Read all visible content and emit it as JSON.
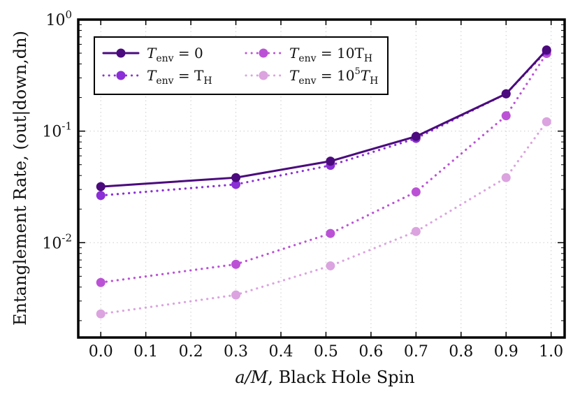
{
  "chart_data": {
    "type": "line",
    "title": "",
    "xlabel_math": "a/M",
    "xlabel_text": ", Black Hole Spin",
    "ylabel": "Entanglement Rate, (out|down,dn)",
    "xlim": [
      -0.05,
      1.03
    ],
    "ylim_log10": [
      -2.85,
      0.0
    ],
    "yscale": "log",
    "grid": true,
    "legend_position": "top-left",
    "x_ticks": [
      0.0,
      0.1,
      0.2,
      0.3,
      0.4,
      0.5,
      0.6,
      0.7,
      0.8,
      0.9,
      1.0
    ],
    "x_tick_labels": [
      "0.0",
      "0.1",
      "0.2",
      "0.3",
      "0.4",
      "0.5",
      "0.6",
      "0.7",
      "0.8",
      "0.9",
      "1.0"
    ],
    "y_ticks": [
      {
        "base": "10",
        "exp": "0",
        "log": 0
      },
      {
        "base": "10",
        "exp": "-1",
        "log": -1
      },
      {
        "base": "10",
        "exp": "-2",
        "log": -2
      }
    ],
    "x": [
      0.0,
      0.3,
      0.51,
      0.7,
      0.9,
      0.99
    ],
    "series": [
      {
        "name": "T_env = 0",
        "label_main": "T",
        "label_sub": "env",
        "label_rest": " = 0",
        "color": "#4b0a7d",
        "style": "solid",
        "values": [
          0.0318,
          0.0383,
          0.0538,
          0.0897,
          0.2161,
          0.5337
        ]
      },
      {
        "name": "T_env = T_H",
        "label_main": "T",
        "label_sub": "env",
        "label_rest": " = T",
        "label_rest_sub": "H",
        "color": "#8b2fd6",
        "style": "dotted",
        "values": [
          0.0265,
          0.0333,
          0.0493,
          0.0861,
          0.2161,
          0.5216
        ]
      },
      {
        "name": "T_env = 10T_H",
        "label_main": "T",
        "label_sub": "env",
        "label_rest": " = 10T",
        "label_rest_sub": "H",
        "color": "#bb52d6",
        "style": "dotted",
        "values": [
          0.0044,
          0.0064,
          0.0121,
          0.0285,
          0.1373,
          0.4965
        ]
      },
      {
        "name": "T_env = 10^5 T_H",
        "label_main": "T",
        "label_sub": "env",
        "label_rest": " = 10",
        "label_sup": "5",
        "label_rest2": "T",
        "label_rest_sub": "H",
        "color": "#dba3df",
        "style": "dotted",
        "values": [
          0.0023,
          0.0034,
          0.0062,
          0.0126,
          0.0383,
          0.1213
        ]
      }
    ]
  }
}
